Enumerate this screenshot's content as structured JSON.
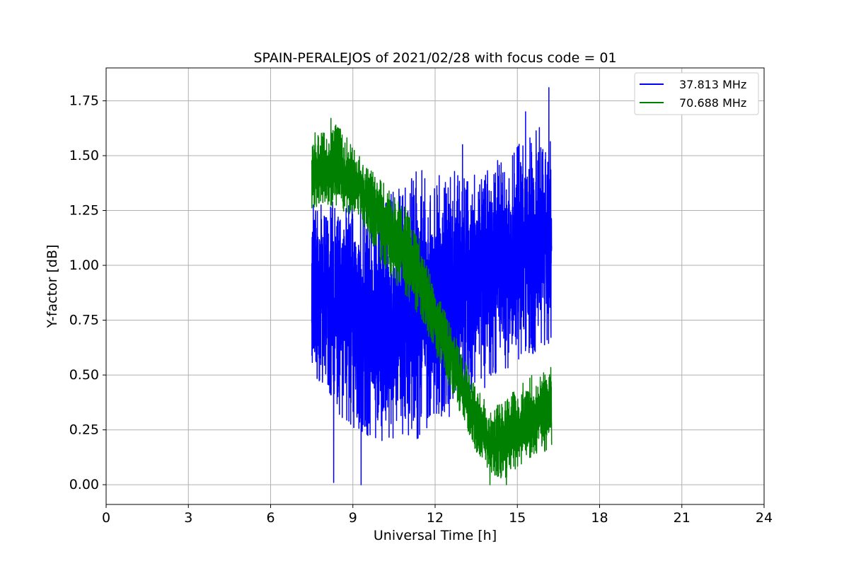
{
  "chart_data": {
    "type": "line",
    "title": "SPAIN-PERALEJOS of 2021/02/28 with focus code = 01",
    "xlabel": "Universal Time [h]",
    "ylabel": "Y-factor [dB]",
    "xlim": [
      0,
      24
    ],
    "ylim": [
      -0.09,
      1.9
    ],
    "xticks": [
      0,
      3,
      6,
      9,
      12,
      15,
      18,
      21,
      24
    ],
    "xtick_labels": [
      "0",
      "3",
      "6",
      "9",
      "12",
      "15",
      "18",
      "21",
      "24"
    ],
    "yticks": [
      0.0,
      0.25,
      0.5,
      0.75,
      1.0,
      1.25,
      1.5,
      1.75
    ],
    "ytick_labels": [
      "0.00",
      "0.25",
      "0.50",
      "0.75",
      "1.00",
      "1.25",
      "1.50",
      "1.75"
    ],
    "grid": true,
    "legend_position": "top-right",
    "series": [
      {
        "name": "37.813 MHz",
        "color": "#0000ff",
        "envelope": {
          "x": [
            7.5,
            8.0,
            8.5,
            9.0,
            9.5,
            10.0,
            10.5,
            11.0,
            11.5,
            12.0,
            12.5,
            13.0,
            13.5,
            14.0,
            14.5,
            15.0,
            15.5,
            16.0,
            16.25
          ],
          "low": [
            0.5,
            0.45,
            0.3,
            0.25,
            0.22,
            0.2,
            0.2,
            0.22,
            0.2,
            0.32,
            0.3,
            0.38,
            0.42,
            0.45,
            0.52,
            0.55,
            0.58,
            0.6,
            0.62
          ],
          "high": [
            1.3,
            1.35,
            1.25,
            1.3,
            1.3,
            1.3,
            1.35,
            1.4,
            1.45,
            1.42,
            1.45,
            1.45,
            1.42,
            1.45,
            1.5,
            1.55,
            1.6,
            1.65,
            1.55
          ],
          "mean": [
            0.95,
            0.9,
            0.85,
            0.8,
            0.75,
            0.72,
            0.7,
            0.75,
            0.78,
            0.85,
            0.9,
            0.95,
            0.95,
            0.98,
            1.0,
            1.02,
            1.05,
            1.08,
            1.05
          ]
        },
        "extreme_points": [
          {
            "x": 8.3,
            "y": 0.01
          },
          {
            "x": 9.3,
            "y": 0.0
          },
          {
            "x": 16.15,
            "y": 1.81
          },
          {
            "x": 15.3,
            "y": 1.7
          },
          {
            "x": 13.0,
            "y": 1.55
          }
        ]
      },
      {
        "name": "70.688 MHz",
        "color": "#008000",
        "envelope": {
          "x": [
            7.5,
            8.0,
            8.5,
            9.0,
            9.5,
            10.0,
            10.5,
            11.0,
            11.5,
            12.0,
            12.5,
            13.0,
            13.5,
            14.0,
            14.5,
            15.0,
            15.5,
            16.0,
            16.25
          ],
          "low": [
            1.25,
            1.28,
            1.25,
            1.22,
            1.15,
            1.0,
            0.92,
            0.85,
            0.75,
            0.6,
            0.45,
            0.3,
            0.15,
            0.05,
            0.02,
            0.08,
            0.12,
            0.15,
            0.18
          ],
          "high": [
            1.6,
            1.62,
            1.65,
            1.55,
            1.45,
            1.4,
            1.35,
            1.25,
            1.1,
            0.9,
            0.75,
            0.6,
            0.45,
            0.35,
            0.38,
            0.45,
            0.5,
            0.52,
            0.54
          ],
          "mean": [
            1.42,
            1.43,
            1.42,
            1.38,
            1.32,
            1.22,
            1.12,
            1.02,
            0.92,
            0.78,
            0.62,
            0.45,
            0.3,
            0.2,
            0.2,
            0.25,
            0.3,
            0.32,
            0.33
          ]
        },
        "extreme_points": [
          {
            "x": 8.2,
            "y": 1.67
          },
          {
            "x": 14.0,
            "y": 0.0
          },
          {
            "x": 14.6,
            "y": 0.0
          }
        ]
      }
    ]
  }
}
